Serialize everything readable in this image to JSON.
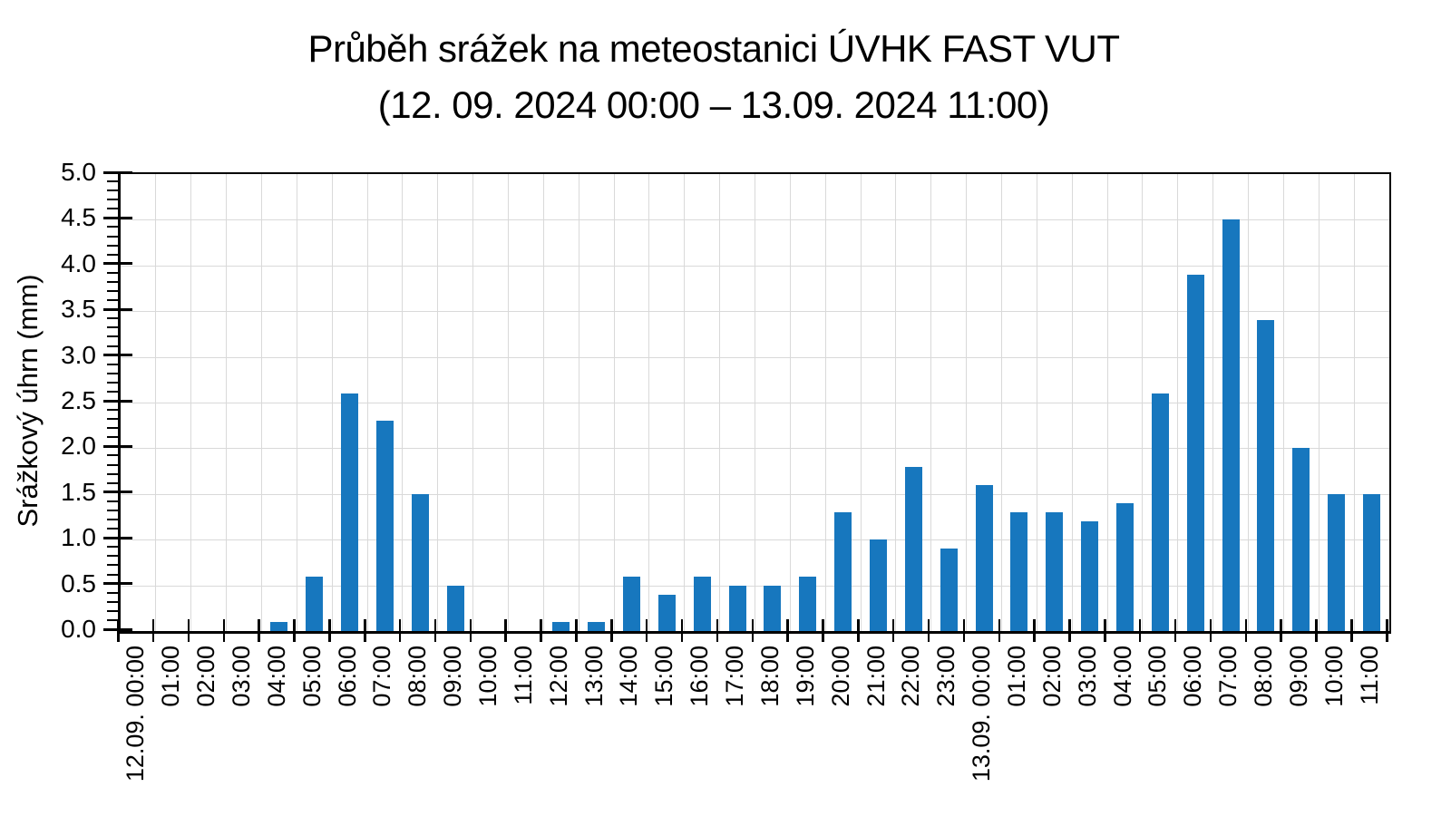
{
  "title": {
    "line1": "Průběh srážek na meteostanici ÚVHK FAST VUT",
    "line2": "(12. 09. 2024 00:00 – 13.09. 2024 11:00)"
  },
  "chart_data": {
    "type": "bar",
    "title": "Průběh srážek na meteostanici ÚVHK FAST VUT (12. 09. 2024 00:00 – 13.09. 2024 11:00)",
    "ylabel": "Srážkový úhrn (mm)",
    "xlabel": "",
    "ylim": [
      0,
      5
    ],
    "ytick_step": 0.5,
    "ytick_decimals": 1,
    "y_minor_step": 0.1,
    "grid": true,
    "legend": "none",
    "bar_color": "#1777BE",
    "gridline_color": "#D9D9D9",
    "axis_color": "#000000",
    "categories": [
      "12.09. 00:00",
      "01:00",
      "02:00",
      "03:00",
      "04:00",
      "05:00",
      "06:00",
      "07:00",
      "08:00",
      "09:00",
      "10:00",
      "11:00",
      "12:00",
      "13:00",
      "14:00",
      "15:00",
      "16:00",
      "17:00",
      "18:00",
      "19:00",
      "20:00",
      "21:00",
      "22:00",
      "23:00",
      "13.09. 00:00",
      "01:00",
      "02:00",
      "03:00",
      "04:00",
      "05:00",
      "06:00",
      "07:00",
      "08:00",
      "09:00",
      "10:00",
      "11:00"
    ],
    "values": [
      0,
      0,
      0,
      0,
      0.1,
      0.6,
      2.6,
      2.3,
      1.5,
      0.5,
      0,
      0,
      0.1,
      0.1,
      0.6,
      0.4,
      0.6,
      0.5,
      0.5,
      0.6,
      1.3,
      1.0,
      1.8,
      0.9,
      1.6,
      1.3,
      1.3,
      1.2,
      1.4,
      2.6,
      3.9,
      4.5,
      3.4,
      2.0,
      1.5,
      1.5
    ]
  }
}
